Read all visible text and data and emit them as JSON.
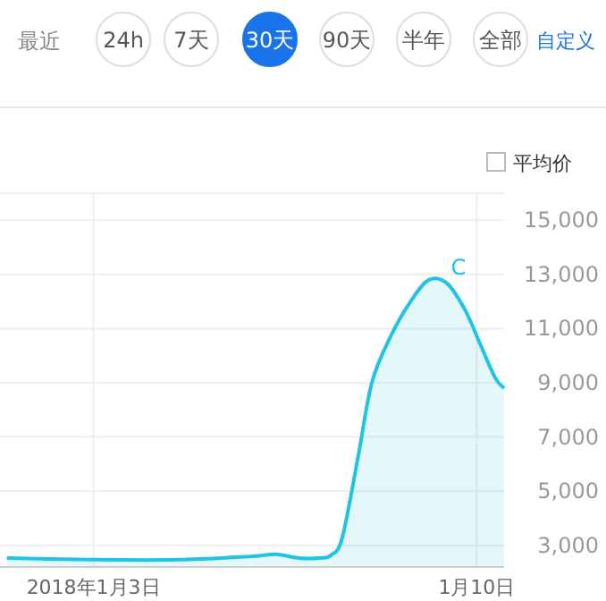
{
  "chart_data": {
    "type": "area",
    "annotations": [
      "最近",
      "24h",
      "7天",
      "30天",
      "90天",
      "半年",
      "全部",
      "自定义",
      "平均价",
      {
        "text": "C",
        "x": "2018-01-09T16:00",
        "y": 12600
      }
    ],
    "x": [
      "2018-01-01T10:00",
      "2018-01-03T00:00",
      "2018-01-04T13:00",
      "2018-01-05T22:00",
      "2018-01-06T08:00",
      "2018-01-06T18:00",
      "2018-01-07T03:00",
      "2018-01-07T08:00",
      "2018-01-07T13:00",
      "2018-01-07T20:00",
      "2018-01-08T02:00",
      "2018-01-08T10:00",
      "2018-01-08T19:00",
      "2018-01-09T03:00",
      "2018-01-09T11:00",
      "2018-01-09T19:00",
      "2018-01-10T01:00",
      "2018-01-10T08:00",
      "2018-01-10T12:00"
    ],
    "series": [
      {
        "color": "#1ec3e6",
        "values": [
          2530,
          2470,
          2470,
          2600,
          2670,
          2530,
          2530,
          2630,
          3270,
          6270,
          9000,
          10670,
          12000,
          12800,
          12670,
          11670,
          10530,
          9200,
          8800
        ]
      }
    ],
    "xlim": [
      "2018-01-01T07:00",
      "2018-01-10T12:00"
    ],
    "xticks": [
      {
        "value": "2018-01-03",
        "label": "2018年1月3日"
      },
      {
        "value": "2018-01-10",
        "label": "1月10日"
      }
    ],
    "ylim": [
      2200,
      16000
    ],
    "yticks": [
      {
        "value": 3000,
        "label": "3,000"
      },
      {
        "value": 5000,
        "label": "5,000"
      },
      {
        "value": 7000,
        "label": "7,000"
      },
      {
        "value": 9000,
        "label": "9,000"
      },
      {
        "value": 11000,
        "label": "11,000"
      },
      {
        "value": 13000,
        "label": "13,000"
      },
      {
        "value": 15000,
        "label": "15,000"
      }
    ],
    "grid": true
  }
}
